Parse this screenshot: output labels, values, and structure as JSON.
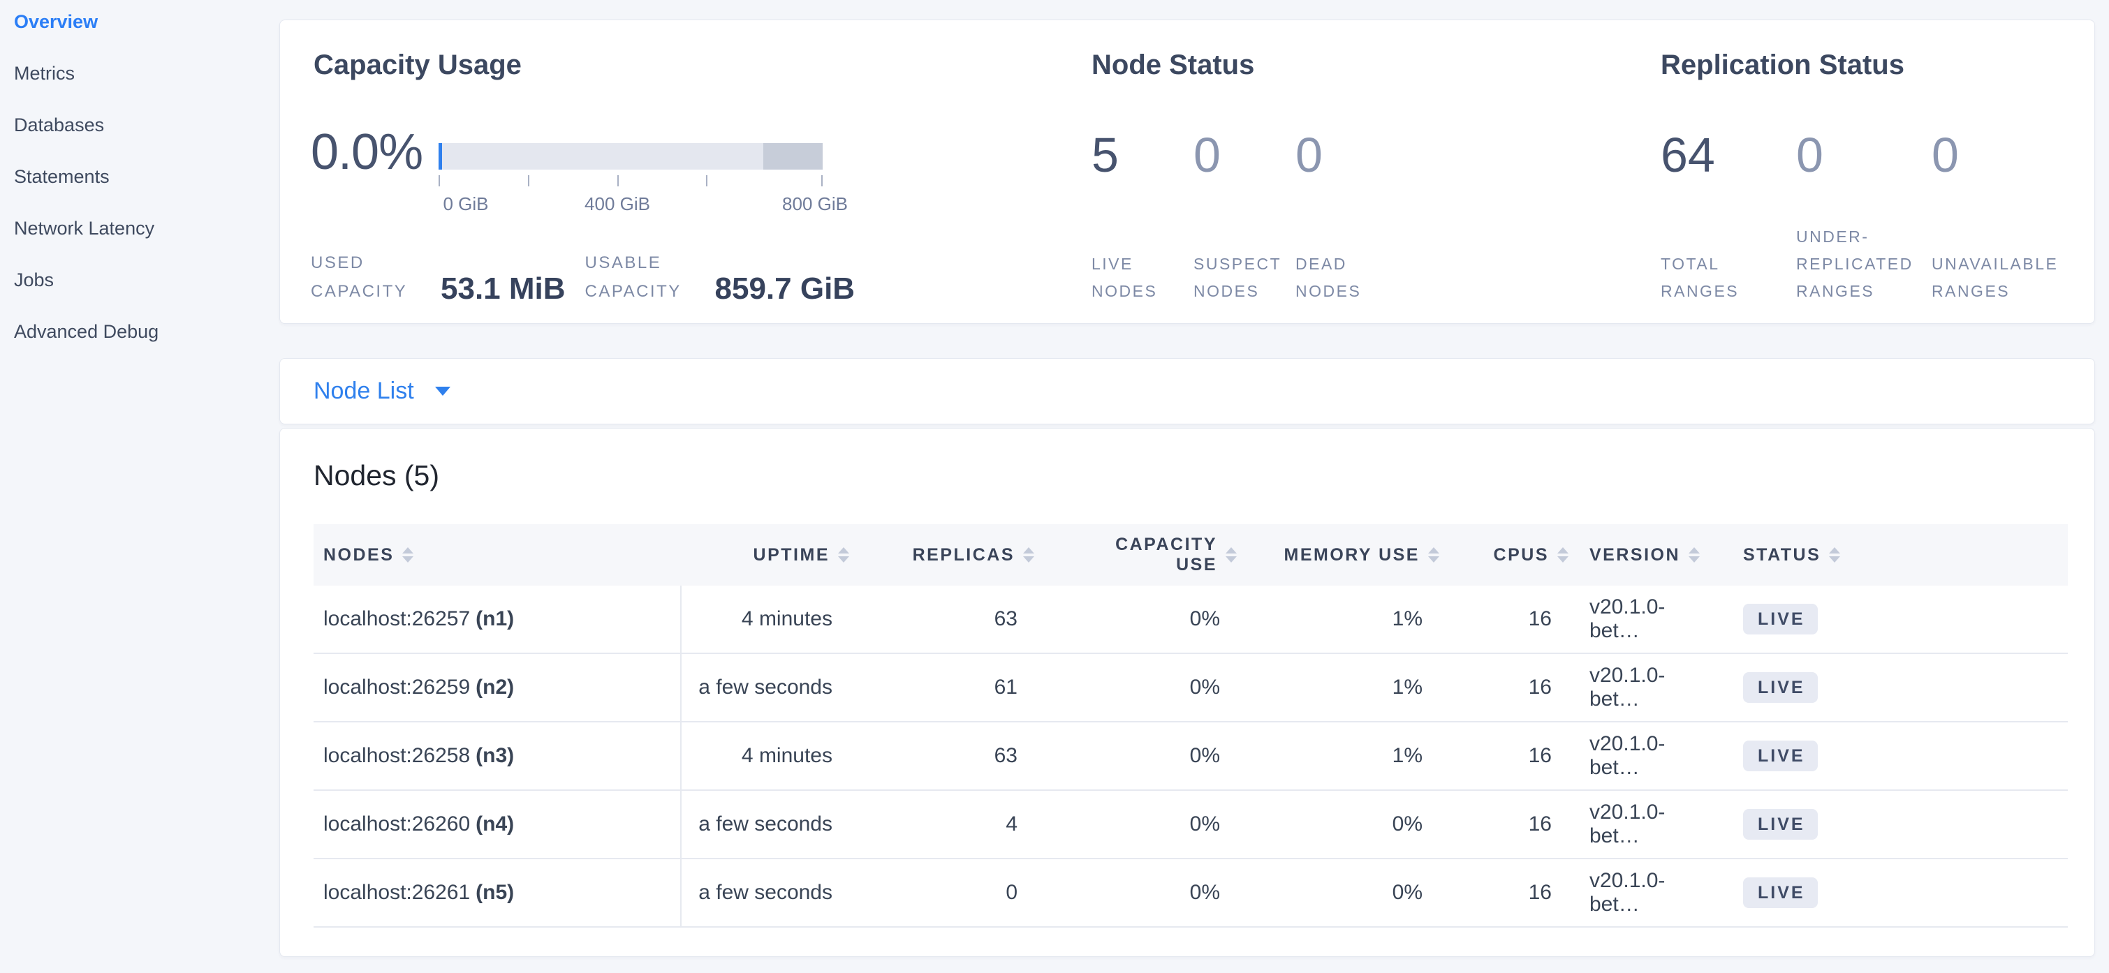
{
  "colors": {
    "accent_blue": "#2f80ed",
    "page_background": "#f4f6fa",
    "bar_track": "#e4e7ef",
    "bar_reserved": "#c7cdd9",
    "bar_used": "#2f80ed",
    "badge_background": "#e7eaf3",
    "badge_text": "#3f4b66",
    "primary_number": "#47536e",
    "secondary_number": "#8b96b0"
  },
  "sidebar": {
    "items": [
      {
        "label": "Overview",
        "active": true
      },
      {
        "label": "Metrics",
        "active": false
      },
      {
        "label": "Databases",
        "active": false
      },
      {
        "label": "Statements",
        "active": false
      },
      {
        "label": "Network Latency",
        "active": false
      },
      {
        "label": "Jobs",
        "active": false
      },
      {
        "label": "Advanced Debug",
        "active": false
      }
    ]
  },
  "capacity_usage": {
    "title": "Capacity Usage",
    "percent": "0.0%",
    "axis_ticks": [
      "0 GiB",
      "400 GiB",
      "800 GiB"
    ],
    "used": {
      "label": "USED CAPACITY",
      "value": "53.1 MiB"
    },
    "usable": {
      "label": "USABLE CAPACITY",
      "value": "859.7 GiB"
    }
  },
  "node_status": {
    "title": "Node Status",
    "stats": [
      {
        "value": "5",
        "label": "LIVE NODES",
        "primary": true
      },
      {
        "value": "0",
        "label": "SUSPECT NODES",
        "primary": false
      },
      {
        "value": "0",
        "label": "DEAD NODES",
        "primary": false
      }
    ]
  },
  "replication_status": {
    "title": "Replication Status",
    "stats": [
      {
        "value": "64",
        "label": "TOTAL RANGES",
        "primary": true
      },
      {
        "value": "0",
        "label": "UNDER-REPLICATED RANGES",
        "primary": false
      },
      {
        "value": "0",
        "label": "UNAVAILABLE RANGES",
        "primary": false
      }
    ]
  },
  "node_list": {
    "label": "Node List"
  },
  "nodes_table": {
    "title": "Nodes (5)",
    "columns": [
      "NODES",
      "UPTIME",
      "REPLICAS",
      "CAPACITY USE",
      "MEMORY USE",
      "CPUS",
      "VERSION",
      "STATUS"
    ],
    "rows": [
      {
        "address": "localhost:26257",
        "node_id": "(n1)",
        "uptime": "4 minutes",
        "replicas": "63",
        "capacity_use": "0%",
        "memory_use": "1%",
        "cpus": "16",
        "version": "v20.1.0-bet…",
        "status": "LIVE"
      },
      {
        "address": "localhost:26259",
        "node_id": "(n2)",
        "uptime": "a few seconds",
        "replicas": "61",
        "capacity_use": "0%",
        "memory_use": "1%",
        "cpus": "16",
        "version": "v20.1.0-bet…",
        "status": "LIVE"
      },
      {
        "address": "localhost:26258",
        "node_id": "(n3)",
        "uptime": "4 minutes",
        "replicas": "63",
        "capacity_use": "0%",
        "memory_use": "1%",
        "cpus": "16",
        "version": "v20.1.0-bet…",
        "status": "LIVE"
      },
      {
        "address": "localhost:26260",
        "node_id": "(n4)",
        "uptime": "a few seconds",
        "replicas": "4",
        "capacity_use": "0%",
        "memory_use": "0%",
        "cpus": "16",
        "version": "v20.1.0-bet…",
        "status": "LIVE"
      },
      {
        "address": "localhost:26261",
        "node_id": "(n5)",
        "uptime": "a few seconds",
        "replicas": "0",
        "capacity_use": "0%",
        "memory_use": "0%",
        "cpus": "16",
        "version": "v20.1.0-bet…",
        "status": "LIVE"
      }
    ]
  }
}
